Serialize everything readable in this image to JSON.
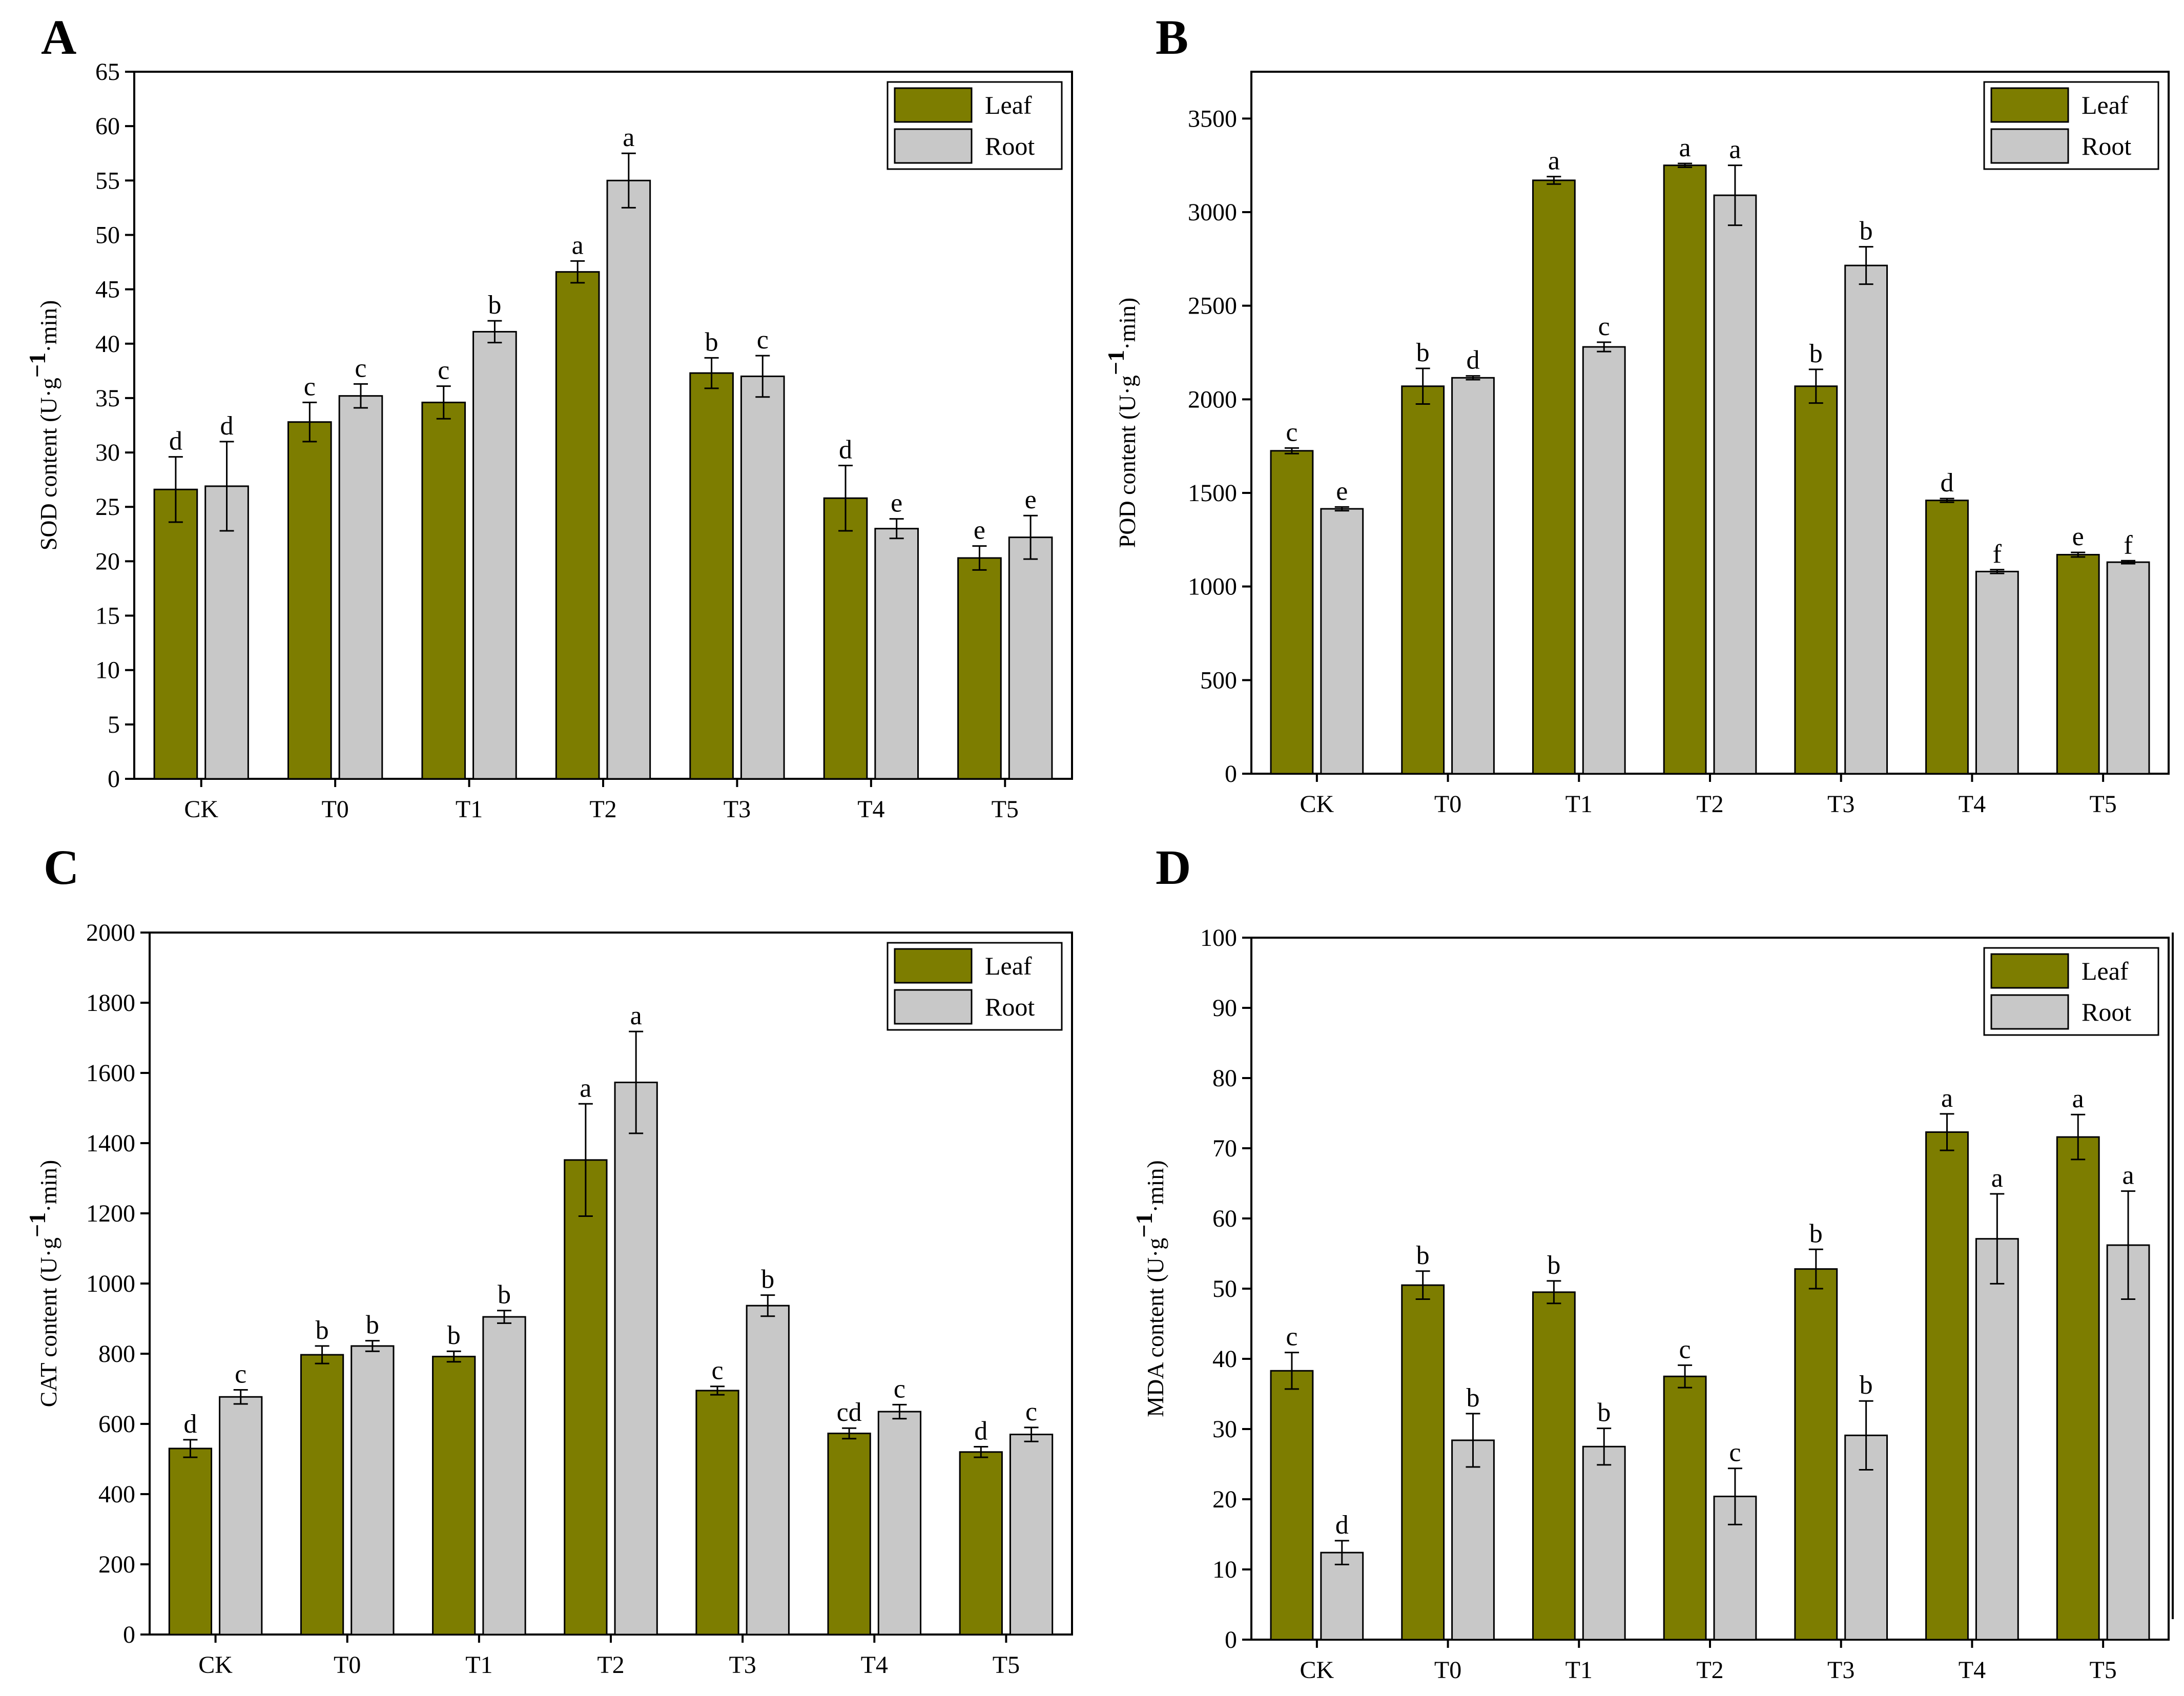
{
  "colors": {
    "leaf": "#7d7d00",
    "root": "#c8c8c8",
    "axis": "#000000"
  },
  "chart_data": [
    {
      "panel": "A",
      "type": "bar",
      "ylabel": "SOD content (U·g",
      "ylabel_sup": "−1",
      "ylabel_tail": "·min)",
      "ylim": [
        0,
        65
      ],
      "yticks": [
        0,
        5,
        10,
        15,
        20,
        25,
        30,
        35,
        40,
        45,
        50,
        55,
        60,
        65
      ],
      "categories": [
        "CK",
        "T0",
        "T1",
        "T2",
        "T3",
        "T4",
        "T5"
      ],
      "legend": {
        "position": "top-right",
        "entries": [
          "Leaf",
          "Root"
        ]
      },
      "series": [
        {
          "name": "Leaf",
          "values": [
            26.6,
            32.8,
            34.6,
            46.6,
            37.3,
            25.8,
            20.3
          ],
          "errors": [
            3.0,
            1.8,
            1.5,
            1.0,
            1.4,
            3.0,
            1.1
          ],
          "letters": [
            "d",
            "c",
            "c",
            "a",
            "b",
            "d",
            "e"
          ]
        },
        {
          "name": "Root",
          "values": [
            26.9,
            35.2,
            41.1,
            55.0,
            37.0,
            23.0,
            22.2
          ],
          "errors": [
            4.1,
            1.1,
            1.0,
            2.5,
            1.9,
            0.9,
            2.0
          ],
          "letters": [
            "d",
            "c",
            "b",
            "a",
            "c",
            "e",
            "e"
          ]
        }
      ]
    },
    {
      "panel": "B",
      "type": "bar",
      "ylabel": "POD content (U·g",
      "ylabel_sup": "−1",
      "ylabel_tail": "·min)",
      "ylim": [
        0,
        3750
      ],
      "yticks": [
        0,
        500,
        1000,
        1500,
        2000,
        2500,
        3000,
        3500
      ],
      "categories": [
        "CK",
        "T0",
        "T1",
        "T2",
        "T3",
        "T4",
        "T5"
      ],
      "legend": {
        "position": "top-right",
        "entries": [
          "Leaf",
          "Root"
        ]
      },
      "series": [
        {
          "name": "Leaf",
          "values": [
            1725,
            2070,
            3170,
            3250,
            2070,
            1460,
            1170
          ],
          "errors": [
            15,
            95,
            20,
            10,
            90,
            10,
            12
          ],
          "letters": [
            "c",
            "b",
            "a",
            "a",
            "b",
            "d",
            "e"
          ]
        },
        {
          "name": "Root",
          "values": [
            1415,
            2115,
            2280,
            3090,
            2715,
            1080,
            1130
          ],
          "errors": [
            10,
            10,
            25,
            160,
            100,
            10,
            8
          ],
          "letters": [
            "e",
            "d",
            "c",
            "a",
            "b",
            "f",
            "f"
          ]
        }
      ]
    },
    {
      "panel": "C",
      "type": "bar",
      "ylabel": "CAT content (U·g",
      "ylabel_sup": "−1",
      "ylabel_tail": "·min)",
      "ylim": [
        0,
        2000
      ],
      "yticks": [
        0,
        200,
        400,
        600,
        800,
        1000,
        1200,
        1400,
        1600,
        1800,
        2000
      ],
      "categories": [
        "CK",
        "T0",
        "T1",
        "T2",
        "T3",
        "T4",
        "T5"
      ],
      "legend": {
        "position": "top-right",
        "entries": [
          "Leaf",
          "Root"
        ]
      },
      "series": [
        {
          "name": "Leaf",
          "values": [
            530,
            797,
            792,
            1352,
            695,
            573,
            520
          ],
          "errors": [
            25,
            25,
            15,
            160,
            12,
            15,
            15
          ],
          "letters": [
            "d",
            "b",
            "b",
            "a",
            "c",
            "cd",
            "d"
          ]
        },
        {
          "name": "Root",
          "values": [
            677,
            822,
            905,
            1573,
            937,
            635,
            570
          ],
          "errors": [
            20,
            15,
            18,
            145,
            30,
            20,
            20
          ],
          "letters": [
            "c",
            "b",
            "b",
            "a",
            "b",
            "c",
            "c"
          ]
        }
      ]
    },
    {
      "panel": "D",
      "type": "bar",
      "ylabel": "MDA content (U·g",
      "ylabel_sup": "−1",
      "ylabel_tail": "·min)",
      "ylim": [
        0,
        100
      ],
      "yticks": [
        0,
        10,
        20,
        30,
        40,
        50,
        60,
        70,
        80,
        90,
        100
      ],
      "categories": [
        "CK",
        "T0",
        "T1",
        "T2",
        "T3",
        "T4",
        "T5"
      ],
      "legend": {
        "position": "top-right",
        "entries": [
          "Leaf",
          "Root"
        ]
      },
      "series": [
        {
          "name": "Leaf",
          "values": [
            38.3,
            50.5,
            49.5,
            37.5,
            52.8,
            72.3,
            71.6
          ],
          "errors": [
            2.6,
            2.0,
            1.6,
            1.6,
            2.8,
            2.6,
            3.2
          ],
          "letters": [
            "c",
            "b",
            "b",
            "c",
            "b",
            "a",
            "a"
          ]
        },
        {
          "name": "Root",
          "values": [
            12.4,
            28.4,
            27.5,
            20.4,
            29.1,
            57.1,
            56.2
          ],
          "errors": [
            1.7,
            3.8,
            2.6,
            4.0,
            4.9,
            6.4,
            7.7
          ],
          "letters": [
            "d",
            "b",
            "b",
            "c",
            "b",
            "a",
            "a"
          ]
        }
      ]
    }
  ]
}
